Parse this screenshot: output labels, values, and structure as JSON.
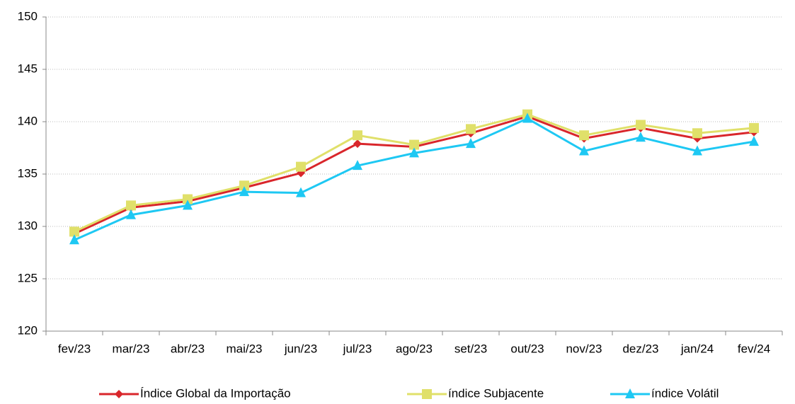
{
  "chart_data": {
    "type": "line",
    "categories": [
      "fev/23",
      "mar/23",
      "abr/23",
      "mai/23",
      "jun/23",
      "jul/23",
      "ago/23",
      "set/23",
      "out/23",
      "nov/23",
      "dez/23",
      "jan/24",
      "fev/24"
    ],
    "series": [
      {
        "name": "Índice Global da Importação",
        "color": "#d9262b",
        "marker": "diamond",
        "values": [
          129.3,
          131.8,
          132.4,
          133.7,
          135.1,
          137.9,
          137.6,
          138.9,
          140.5,
          138.4,
          139.4,
          138.4,
          139.0
        ]
      },
      {
        "name": "índice Subjacente",
        "color": "#e0e06a",
        "marker": "square",
        "values": [
          129.5,
          132.0,
          132.6,
          133.9,
          135.7,
          138.7,
          137.8,
          139.3,
          140.7,
          138.7,
          139.7,
          138.9,
          139.4
        ]
      },
      {
        "name": "índice Volátil",
        "color": "#1ec8f3",
        "marker": "triangle",
        "values": [
          128.7,
          131.1,
          132.0,
          133.3,
          133.2,
          135.8,
          137.0,
          137.9,
          140.3,
          137.2,
          138.5,
          137.2,
          138.1
        ]
      }
    ],
    "ylim": [
      120,
      150
    ],
    "yticks": [
      120,
      125,
      130,
      135,
      140,
      145,
      150
    ],
    "grid": true,
    "legend": "bottom"
  }
}
